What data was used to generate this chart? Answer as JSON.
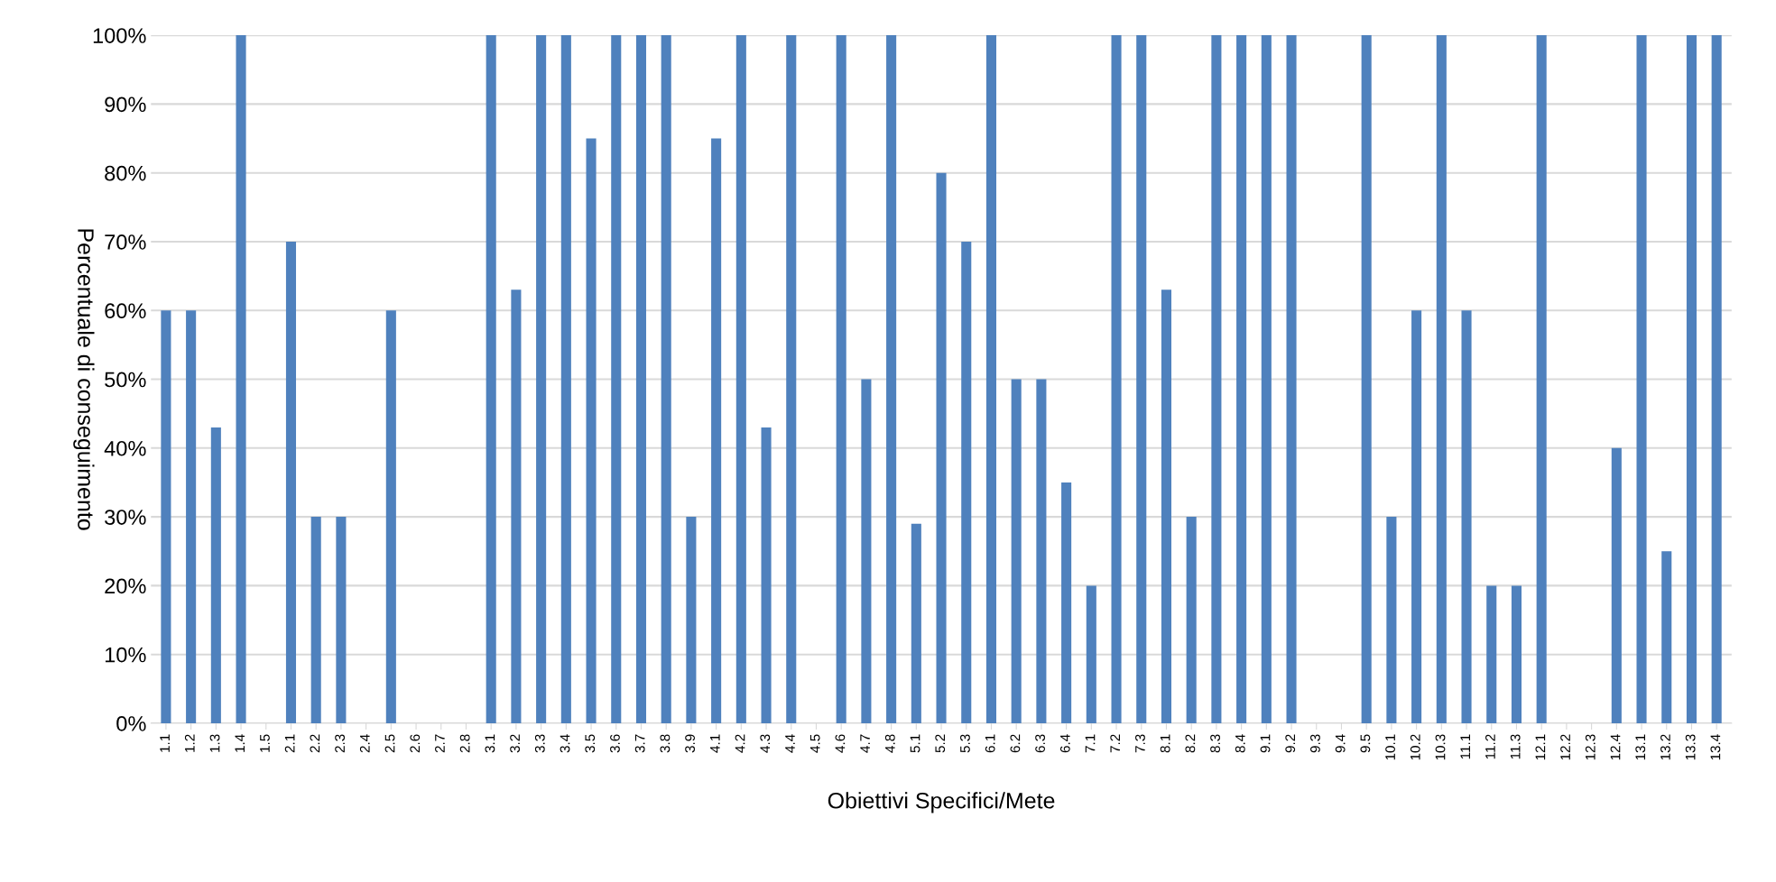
{
  "chart_data": {
    "type": "bar",
    "xlabel": "Obiettivi Specifici/Mete",
    "ylabel": "Percentuale di conseguimento",
    "categories": [
      "1.1",
      "1.2",
      "1.3",
      "1.4",
      "1.5",
      "2.1",
      "2.2",
      "2.3",
      "2.4",
      "2.5",
      "2.6",
      "2.7",
      "2.8",
      "3.1",
      "3.2",
      "3.3",
      "3.4",
      "3.5",
      "3.6",
      "3.7",
      "3.8",
      "3.9",
      "4.1",
      "4.2",
      "4.3",
      "4.4",
      "4.5",
      "4.6",
      "4.7",
      "4.8",
      "5.1",
      "5.2",
      "5.3",
      "6.1",
      "6.2",
      "6.3",
      "6.4",
      "7.1",
      "7.2",
      "7.3",
      "8.1",
      "8.2",
      "8.3",
      "8.4",
      "9.1",
      "9.2",
      "9.3",
      "9.4",
      "9.5",
      "10.1",
      "10.2",
      "10.3",
      "11.1",
      "11.2",
      "11.3",
      "12.1",
      "12.2",
      "12.3",
      "12.4",
      "13.1",
      "13.2",
      "13.3",
      "13.4"
    ],
    "values": [
      60,
      60,
      43,
      100,
      0,
      70,
      30,
      30,
      0,
      60,
      0,
      0,
      0,
      100,
      63,
      100,
      100,
      85,
      100,
      100,
      100,
      30,
      85,
      100,
      43,
      100,
      0,
      100,
      50,
      100,
      29,
      80,
      70,
      100,
      50,
      50,
      35,
      20,
      100,
      100,
      63,
      30,
      100,
      100,
      100,
      100,
      0,
      0,
      100,
      30,
      60,
      100,
      60,
      20,
      20,
      100,
      0,
      0,
      40,
      100,
      25,
      100,
      100
    ],
    "color": "#4f81bd",
    "ylim": [
      0,
      100
    ],
    "yticks": [
      {
        "value": 0,
        "label": "0%"
      },
      {
        "value": 10,
        "label": "10%"
      },
      {
        "value": 20,
        "label": "20%"
      },
      {
        "value": 30,
        "label": "30%"
      },
      {
        "value": 40,
        "label": "40%"
      },
      {
        "value": 50,
        "label": "50%"
      },
      {
        "value": 60,
        "label": "60%"
      },
      {
        "value": 70,
        "label": "70%"
      },
      {
        "value": 80,
        "label": "80%"
      },
      {
        "value": 90,
        "label": "90%"
      },
      {
        "value": 100,
        "label": "100%"
      }
    ],
    "grid": "y",
    "legend": false
  }
}
